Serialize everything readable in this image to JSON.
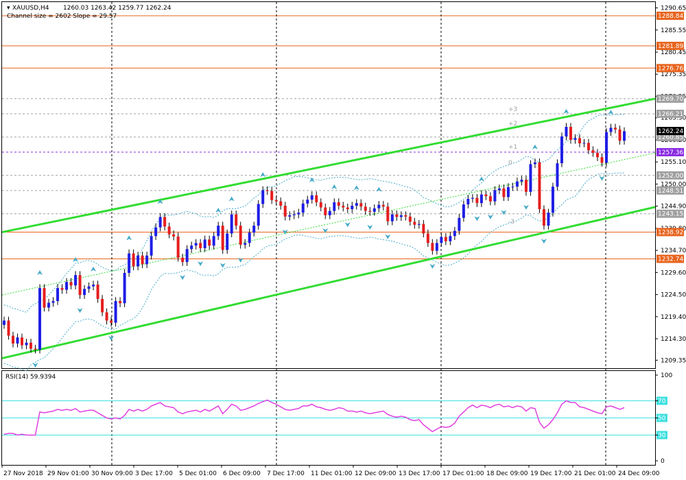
{
  "chart_data": {
    "type": "candlestick",
    "symbol_header": "XAUUSD,H4",
    "ohlc_header": "1260.03 1263.42 1259.77 1262.24",
    "channel_info": "Channel size = 2602 Slope = 29.57",
    "price_range": [
      1207.5,
      1292.0
    ],
    "price_ticks": [
      "1290.65",
      "1285.55",
      "1280.45",
      "1275.35",
      "1270.25",
      "1265.30",
      "1260.20",
      "1255.10",
      "1250.00",
      "1244.90",
      "1239.80",
      "1234.70",
      "1229.60",
      "1224.50",
      "1219.40",
      "1214.30",
      "1209.35"
    ],
    "level_lines": [
      {
        "price": 1288.84,
        "label": "1288.84",
        "color": "#e8641e",
        "style": "solid"
      },
      {
        "price": 1281.89,
        "label": "1281.89",
        "color": "#e8641e",
        "style": "solid"
      },
      {
        "price": 1276.76,
        "label": "1276.76",
        "color": "#e8641e",
        "style": "solid"
      },
      {
        "price": 1269.7,
        "label": "1269.70",
        "color": "#a0a0a0",
        "style": "dashed"
      },
      {
        "price": 1266.21,
        "label": "1266.21",
        "color": "#a0a0a0",
        "style": "dashed"
      },
      {
        "price": 1260.85,
        "label": "1260.85",
        "color": "#a0a0a0",
        "style": "dashed"
      },
      {
        "price": 1257.36,
        "label": "1257.36",
        "color": "#8a2be2",
        "style": "dashed"
      },
      {
        "price": 1252.0,
        "label": "1252.00",
        "color": "#a0a0a0",
        "style": "dashed"
      },
      {
        "price": 1248.51,
        "label": "1248.51",
        "color": "#a0a0a0",
        "style": "dashed"
      },
      {
        "price": 1243.15,
        "label": "1243.15",
        "color": "#a0a0a0",
        "style": "dashed"
      },
      {
        "price": 1238.92,
        "label": "1238.92",
        "color": "#e8641e",
        "style": "solid"
      },
      {
        "price": 1232.74,
        "label": "1232.74",
        "color": "#e8641e",
        "style": "solid"
      }
    ],
    "current_price": {
      "label": "1262.24",
      "price": 1262.24
    },
    "level_marks": [
      {
        "text": "+3",
        "price": 1267.3
      },
      {
        "text": "+2",
        "price": 1264.0
      },
      {
        "text": "+1",
        "price": 1258.6
      },
      {
        "text": "0",
        "price": 1255.0
      },
      {
        "text": "-3",
        "price": 1241.4
      }
    ],
    "channel": {
      "upper": [
        [
          0,
          1238.9
        ],
        [
          1,
          1269.7
        ]
      ],
      "lower": [
        [
          0,
          1209.8
        ],
        [
          1,
          1244.7
        ]
      ],
      "middle": [
        [
          0,
          1224.4
        ],
        [
          1,
          1257.2
        ]
      ]
    },
    "time_labels": [
      "27 Nov 2018",
      "29 Nov 01:00",
      "30 Nov 09:00",
      "3 Dec 17:00",
      "5 Dec 01:00",
      "6 Dec 09:00",
      "7 Dec 17:00",
      "11 Dec 01:00",
      "12 Dec 09:00",
      "13 Dec 17:00",
      "17 Dec 01:00",
      "18 Dec 09:00",
      "19 Dec 17:00",
      "21 Dec 01:00",
      "24 Dec 09:00"
    ],
    "closes": [
      1218.5,
      1215.0,
      1213.2,
      1214.6,
      1212.8,
      1213.4,
      1212.0,
      1211.8,
      1226.0,
      1221.5,
      1222.6,
      1223.0,
      1226.0,
      1225.6,
      1227.4,
      1226.6,
      1229.0,
      1224.4,
      1225.8,
      1226.4,
      1226.8,
      1223.5,
      1220.4,
      1218.5,
      1218.0,
      1223.0,
      1222.5,
      1229.5,
      1234.0,
      1231.0,
      1233.5,
      1231.5,
      1233.5,
      1238.0,
      1240.0,
      1242.4,
      1240.2,
      1238.4,
      1237.9,
      1233.0,
      1232.0,
      1235.0,
      1235.8,
      1236.4,
      1235.2,
      1237.2,
      1235.8,
      1238.0,
      1240.4,
      1234.8,
      1238.6,
      1243.0,
      1240.4,
      1236.0,
      1236.4,
      1238.8,
      1240.4,
      1245.4,
      1248.6,
      1248.4,
      1246.3,
      1246.0,
      1245.0,
      1242.5,
      1242.8,
      1243.0,
      1243.4,
      1245.5,
      1246.4,
      1247.4,
      1245.8,
      1244.6,
      1242.8,
      1243.8,
      1245.8,
      1245.0,
      1244.6,
      1244.2,
      1245.0,
      1245.6,
      1244.8,
      1243.8,
      1243.6,
      1244.4,
      1245.2,
      1244.8,
      1241.4,
      1243.0,
      1242.4,
      1242.8,
      1242.5,
      1241.3,
      1240.6,
      1240.8,
      1238.6,
      1236.4,
      1234.6,
      1236.4,
      1237.8,
      1236.8,
      1238.0,
      1239.2,
      1242.2,
      1245.3,
      1246.6,
      1246.8,
      1245.6,
      1247.6,
      1247.2,
      1246.0,
      1248.6,
      1249.0,
      1247.0,
      1249.3,
      1249.4,
      1250.6,
      1251.0,
      1248.2,
      1254.6,
      1255.0,
      1244.2,
      1240.4,
      1243.4,
      1249.4,
      1254.8,
      1261.0,
      1263.2,
      1260.2,
      1260.6,
      1259.4,
      1259.5,
      1257.8,
      1257.2,
      1256.2,
      1254.9,
      1262.0,
      1263.0,
      1262.6,
      1260.0,
      1262.2
    ],
    "rsi": {
      "label": "RSI(14) 59.9394",
      "range": [
        0,
        100
      ],
      "ticks": [
        "100",
        "70",
        "50",
        "30",
        "0"
      ],
      "levels": [
        {
          "value": 70,
          "label": "70",
          "color": "#40e0e0"
        },
        {
          "value": 50,
          "label": "50",
          "color": "#40e0e0"
        },
        {
          "value": 30,
          "label": "30",
          "color": "#40e0e0"
        }
      ],
      "values": [
        31,
        32,
        32,
        30,
        31,
        30,
        30,
        30,
        57,
        56,
        57,
        58,
        60,
        59,
        60,
        59,
        61,
        57,
        58,
        59,
        59,
        56,
        53,
        50,
        49,
        50,
        49,
        53,
        60,
        58,
        60,
        58,
        60,
        64,
        66,
        68,
        64,
        63,
        62,
        57,
        55,
        57,
        58,
        59,
        57,
        60,
        58,
        61,
        64,
        55,
        60,
        66,
        64,
        59,
        60,
        62,
        64,
        67,
        69,
        71,
        68,
        66,
        63,
        60,
        59,
        60,
        61,
        64,
        64,
        66,
        63,
        62,
        60,
        59,
        60,
        62,
        61,
        58,
        58,
        57,
        58,
        56,
        55,
        56,
        57,
        58,
        54,
        52,
        51,
        52,
        51,
        48,
        47,
        48,
        42,
        38,
        34,
        37,
        40,
        39,
        40,
        44,
        52,
        57,
        62,
        65,
        62,
        65,
        64,
        62,
        65,
        66,
        63,
        64,
        62,
        64,
        63,
        58,
        62,
        61,
        45,
        38,
        42,
        48,
        56,
        66,
        70,
        68,
        68,
        63,
        62,
        60,
        58,
        56,
        55,
        63,
        64,
        62,
        60,
        62
      ],
      "line_color": "#e040e0"
    },
    "colors": {
      "bull": "#1e1ee6",
      "bear": "#e61e1e",
      "channel": "#32dc32",
      "band": "#46aac8",
      "arrow": "#46aac8"
    }
  }
}
